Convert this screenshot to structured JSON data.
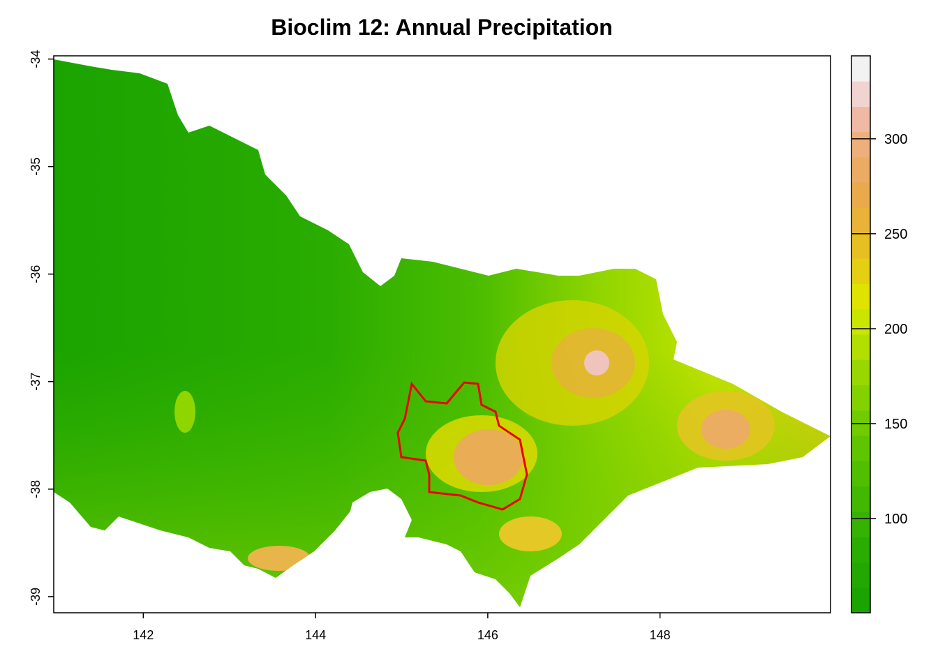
{
  "chart_data": {
    "type": "raster-map",
    "title": "Bioclim 12: Annual Precipitation",
    "xlim": [
      140.96,
      149.98
    ],
    "ylim": [
      -39.15,
      -33.97
    ],
    "xticks": [
      142,
      144,
      146,
      148
    ],
    "yticks": [
      -39,
      -38,
      -37,
      -36,
      -35,
      -34
    ],
    "legend": {
      "lim": [
        50.4,
        343.7
      ],
      "ticks": [
        100,
        150,
        200,
        250,
        300
      ],
      "colors": [
        "#1ba300",
        "#22a800",
        "#2bad00",
        "#36b300",
        "#42b900",
        "#50bf00",
        "#5fc500",
        "#70cb00",
        "#83d200",
        "#98d800",
        "#b0df00",
        "#c9e500",
        "#e0e300",
        "#e4cf12",
        "#e6bf22",
        "#e8b336",
        "#e9aa4b",
        "#ebab62",
        "#edb07a",
        "#efb9a4",
        "#f1d4d0",
        "#f2f2f2"
      ]
    }
  }
}
